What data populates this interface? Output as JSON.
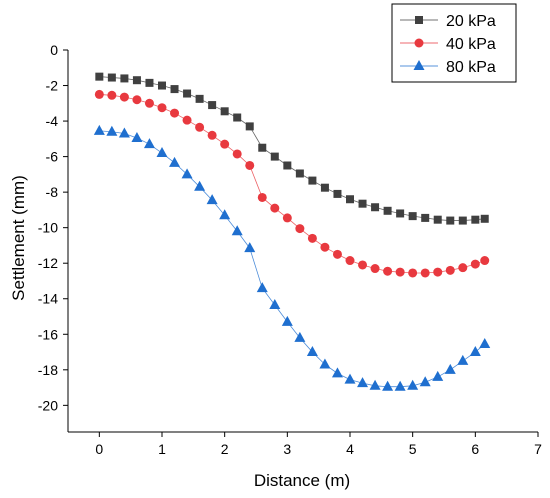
{
  "chart_data": {
    "type": "line",
    "xlabel": "Distance (m)",
    "ylabel": "Settlement (mm)",
    "xlim": [
      -0.5,
      7
    ],
    "ylim": [
      -21.5,
      0
    ],
    "x_ticks": [
      0,
      1,
      2,
      3,
      4,
      5,
      6,
      7
    ],
    "y_ticks": [
      0,
      -2,
      -4,
      -6,
      -8,
      -10,
      -12,
      -14,
      -16,
      -18,
      -20
    ],
    "grid": false,
    "legend_position": "top-right",
    "x": [
      0,
      0.2,
      0.4,
      0.6,
      0.8,
      1.0,
      1.2,
      1.4,
      1.6,
      1.8,
      2.0,
      2.2,
      2.4,
      2.6,
      2.8,
      3.0,
      3.2,
      3.4,
      3.6,
      3.8,
      4.0,
      4.2,
      4.4,
      4.6,
      4.8,
      5.0,
      5.2,
      5.4,
      5.6,
      5.8,
      6.0,
      6.15
    ],
    "series": [
      {
        "name": "20 kPa",
        "color": "#404040",
        "marker": "square",
        "values": [
          -1.5,
          -1.55,
          -1.6,
          -1.7,
          -1.85,
          -2.0,
          -2.2,
          -2.45,
          -2.75,
          -3.1,
          -3.45,
          -3.8,
          -4.3,
          -5.5,
          -6.0,
          -6.5,
          -6.95,
          -7.35,
          -7.75,
          -8.1,
          -8.4,
          -8.65,
          -8.85,
          -9.05,
          -9.2,
          -9.35,
          -9.45,
          -9.55,
          -9.6,
          -9.6,
          -9.55,
          -9.5
        ]
      },
      {
        "name": "40 kPa",
        "color": "#e8393f",
        "marker": "circle",
        "values": [
          -2.5,
          -2.55,
          -2.65,
          -2.8,
          -3.0,
          -3.25,
          -3.55,
          -3.95,
          -4.35,
          -4.8,
          -5.3,
          -5.85,
          -6.5,
          -8.3,
          -8.9,
          -9.45,
          -10.05,
          -10.6,
          -11.1,
          -11.5,
          -11.85,
          -12.1,
          -12.3,
          -12.45,
          -12.5,
          -12.55,
          -12.55,
          -12.5,
          -12.4,
          -12.25,
          -12.05,
          -11.85
        ]
      },
      {
        "name": "80 kPa",
        "color": "#1f6fcf",
        "marker": "triangle",
        "values": [
          -4.55,
          -4.6,
          -4.7,
          -4.95,
          -5.3,
          -5.8,
          -6.35,
          -7.0,
          -7.7,
          -8.45,
          -9.3,
          -10.2,
          -11.15,
          -13.4,
          -14.35,
          -15.3,
          -16.2,
          -17.0,
          -17.7,
          -18.2,
          -18.55,
          -18.75,
          -18.9,
          -18.95,
          -18.95,
          -18.9,
          -18.7,
          -18.4,
          -18.0,
          -17.5,
          -17.0,
          -16.55
        ]
      }
    ]
  }
}
